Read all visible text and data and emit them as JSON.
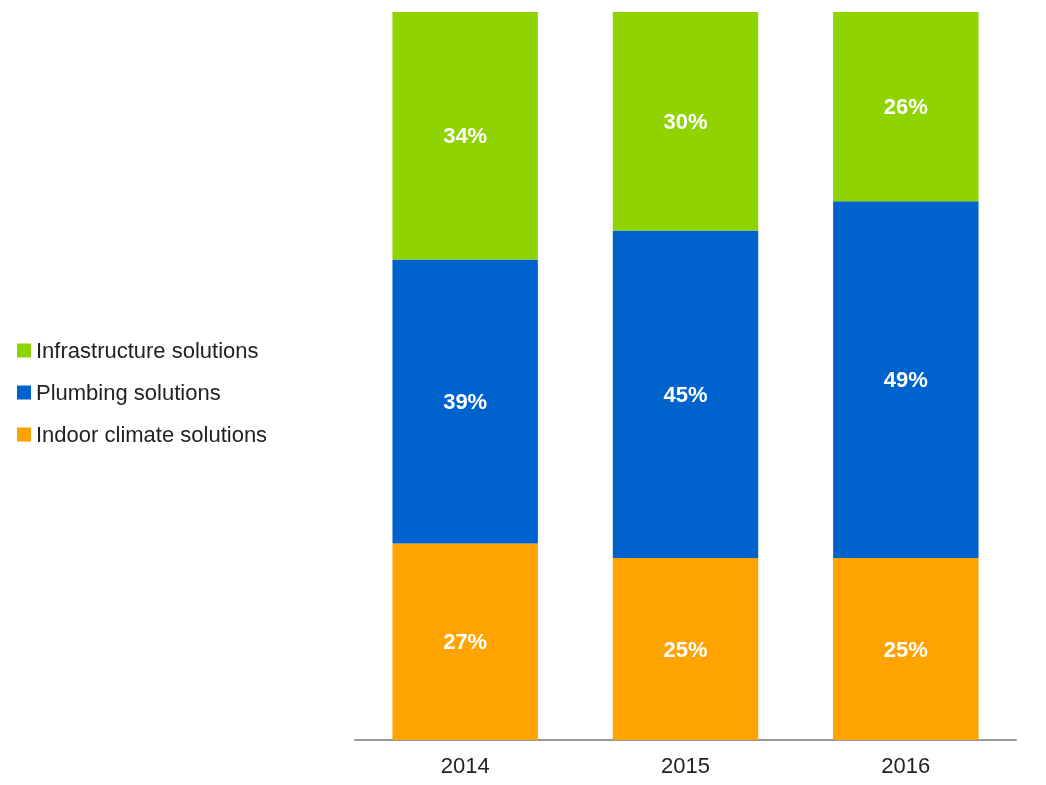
{
  "chart_data": {
    "type": "bar",
    "stacked": true,
    "categories": [
      "2014",
      "2015",
      "2016"
    ],
    "series": [
      {
        "name": "Indoor climate solutions",
        "color": "#ffa300",
        "values": [
          27,
          25,
          25
        ],
        "value_labels": [
          "27%",
          "25%",
          "25%"
        ]
      },
      {
        "name": "Plumbing solutions",
        "color": "#0062cc",
        "values": [
          39,
          45,
          49
        ],
        "value_labels": [
          "39%",
          "45%",
          "49%"
        ]
      },
      {
        "name": "Infrastructure solutions",
        "color": "#8fd400",
        "values": [
          34,
          30,
          26
        ],
        "value_labels": [
          "34%",
          "30%",
          "26%"
        ]
      }
    ],
    "ylim": [
      0,
      100
    ],
    "tick_labels": "x",
    "legend": "left"
  }
}
